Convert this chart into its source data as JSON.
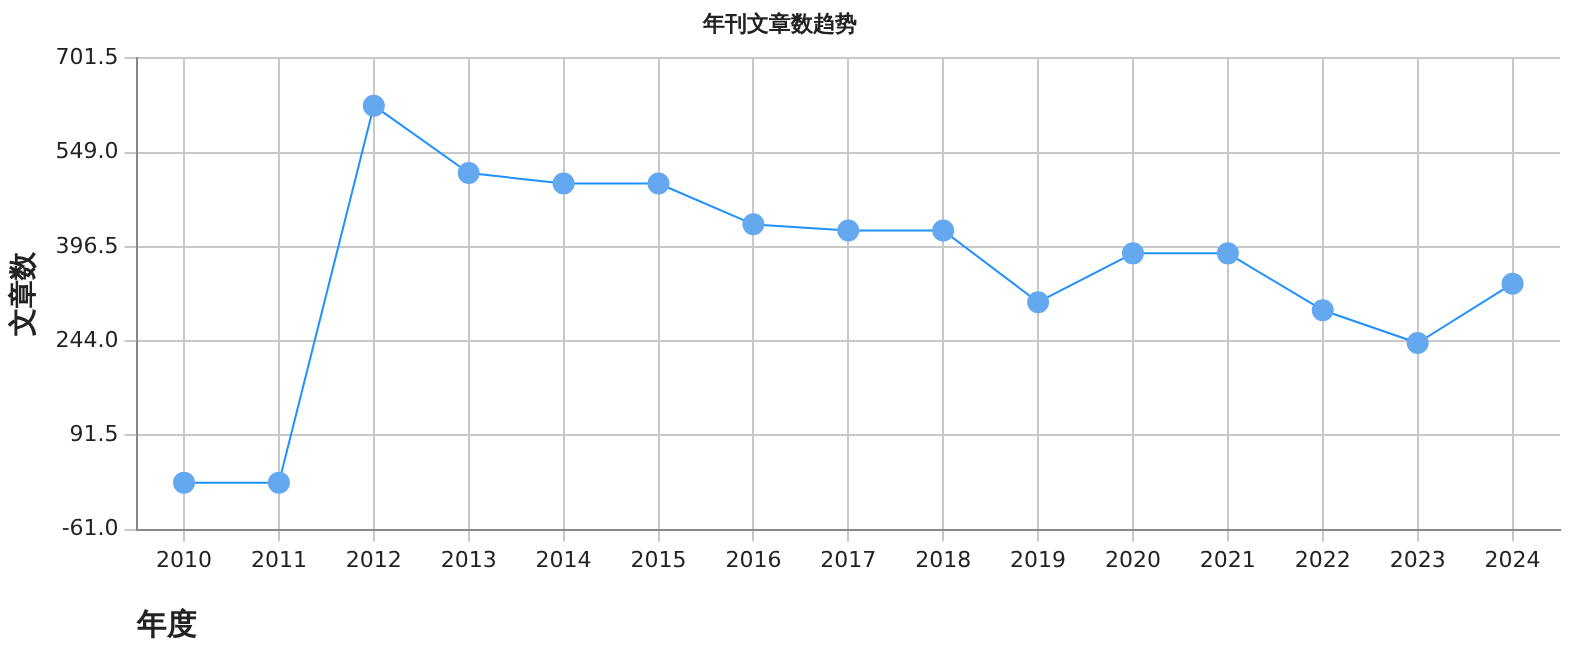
{
  "chart_data": {
    "type": "line",
    "title": "年刊文章数趋势",
    "xlabel": "年度",
    "ylabel": "文章数",
    "categories": [
      "2010",
      "2011",
      "2012",
      "2013",
      "2014",
      "2015",
      "2016",
      "2017",
      "2018",
      "2019",
      "2020",
      "2021",
      "2022",
      "2023",
      "2024"
    ],
    "series": [
      {
        "color": "#1e90ff",
        "values": [
          15,
          15,
          625,
          516,
          499,
          499,
          433,
          423,
          423,
          307,
          386,
          386,
          294,
          241,
          337
        ]
      }
    ],
    "ylim": [
      -61.0,
      701.5
    ],
    "yticks": [
      {
        "value": -61,
        "label": "-61.0"
      },
      {
        "value": 91.5,
        "label": "91.5"
      },
      {
        "value": 244,
        "label": "244.0"
      },
      {
        "value": 396.5,
        "label": "396.5"
      },
      {
        "value": 549,
        "label": "549.0"
      },
      {
        "value": 701.5,
        "label": "701.5"
      }
    ],
    "grid": true,
    "marker": "circle",
    "legend": false
  }
}
